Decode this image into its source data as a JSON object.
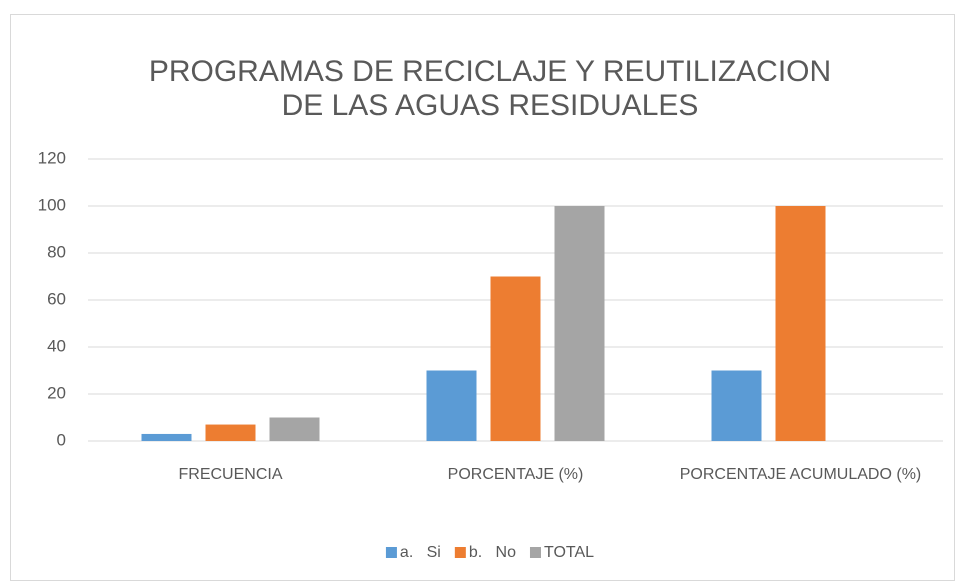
{
  "chart_data": {
    "type": "bar",
    "title": "PROGRAMAS DE RECICLAJE Y REUTILIZACION DE LAS AGUAS RESIDUALES",
    "categories": [
      "FRECUENCIA",
      "PORCENTAJE (%)",
      "PORCENTAJE ACUMULADO (%)"
    ],
    "series": [
      {
        "name": "a.   Si",
        "color": "#5b9bd5",
        "values": [
          3,
          30,
          30
        ]
      },
      {
        "name": "b.   No",
        "color": "#ed7d31",
        "values": [
          7,
          70,
          100
        ]
      },
      {
        "name": "TOTAL",
        "color": "#a5a5a5",
        "values": [
          10,
          100,
          null
        ]
      }
    ],
    "ylim": [
      0,
      120
    ],
    "yticks": [
      0,
      20,
      40,
      60,
      80,
      100,
      120
    ],
    "grid": true,
    "legend": "bottom"
  }
}
